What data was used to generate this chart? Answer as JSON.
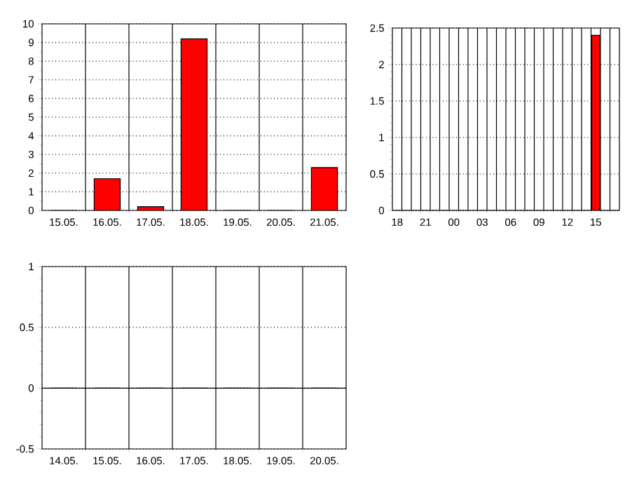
{
  "chart_data": [
    {
      "type": "bar",
      "categories": [
        "15.05.",
        "16.05.",
        "17.05.",
        "18.05.",
        "19.05.",
        "20.05.",
        "21.05."
      ],
      "values": [
        0,
        1.7,
        0.2,
        9.2,
        0,
        0,
        2.3
      ],
      "color": "#ff0000",
      "ylim": [
        0,
        10
      ],
      "yticks": [
        0,
        1,
        2,
        3,
        4,
        5,
        6,
        7,
        8,
        9,
        10
      ],
      "grid": "y"
    },
    {
      "type": "bar",
      "categories": [
        "18",
        null,
        null,
        "21",
        null,
        null,
        "00",
        null,
        null,
        "03",
        null,
        null,
        "06",
        null,
        null,
        "09",
        null,
        null,
        "12",
        null,
        null,
        "15",
        null,
        null
      ],
      "values": [
        0,
        0,
        0,
        0,
        0,
        0,
        0,
        0,
        0,
        0,
        0,
        0,
        0,
        0,
        0,
        0,
        0,
        0,
        0,
        0,
        0,
        2.4,
        0,
        0
      ],
      "color": "#ff0000",
      "ylim": [
        0,
        2.5
      ],
      "yticks": [
        0,
        0.5,
        1,
        1.5,
        2,
        2.5
      ],
      "grid": "y"
    },
    {
      "type": "bar",
      "categories": [
        "14.05.",
        "15.05.",
        "16.05.",
        "17.05.",
        "18.05.",
        "19.05.",
        "20.05."
      ],
      "values": [
        0,
        0,
        0,
        0,
        0,
        0,
        0
      ],
      "color": "#ff0000",
      "ylim": [
        -0.5,
        1
      ],
      "yticks": [
        -0.5,
        0,
        0.5,
        1
      ],
      "grid": "y"
    }
  ]
}
